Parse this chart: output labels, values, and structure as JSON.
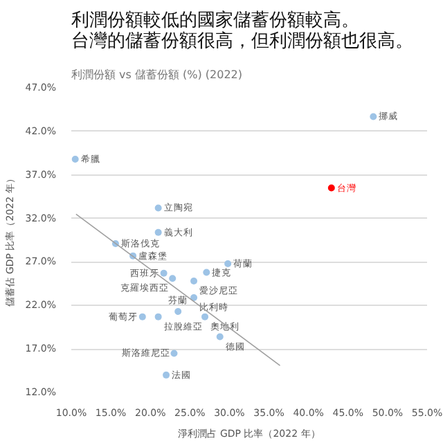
{
  "chart_data": {
    "type": "scatter",
    "title": "利潤份額較低的國家儲蓄份額較高。台灣的儲蓄份額很高，但利潤份額也很高。",
    "subtitle": "利潤份額 vs 儲蓄份額 (%) (2022)",
    "xlabel": "淨利潤占 GDP 比率（2022 年）",
    "ylabel": "儲蓄佔 GDP 比率（2022 年）",
    "xlim": [
      10,
      55
    ],
    "xticks": [
      {
        "value": 10,
        "label": "10.0%"
      },
      {
        "value": 15,
        "label": "15.0%"
      },
      {
        "value": 20,
        "label": "20.0%"
      },
      {
        "value": 25,
        "label": "25.0%"
      },
      {
        "value": 30,
        "label": "30.0%"
      },
      {
        "value": 35,
        "label": "35.0%"
      },
      {
        "value": 40,
        "label": "40.0%"
      },
      {
        "value": 45,
        "label": "45.0%"
      },
      {
        "value": 50,
        "label": "50.0%"
      },
      {
        "value": 55,
        "label": "55.0%"
      }
    ],
    "ylim": [
      12,
      47
    ],
    "yticks": [
      {
        "value": 12,
        "label": "12.0%"
      },
      {
        "value": 17,
        "label": "17.0%"
      },
      {
        "value": 22,
        "label": "22.0%"
      },
      {
        "value": 27,
        "label": "27.0%"
      },
      {
        "value": 32,
        "label": "32.0%"
      },
      {
        "value": 37,
        "label": "37.0%"
      },
      {
        "value": 42,
        "label": "42.0%"
      },
      {
        "value": 47,
        "label": "47.0%"
      }
    ],
    "grid": "y",
    "series": [
      {
        "marker": "circle",
        "color": "#9dc3e6",
        "x": [
          48.2,
          10.5,
          42.9,
          21.0,
          21.0,
          15.6,
          17.8,
          29.8,
          27.1,
          21.7,
          22.8,
          25.5,
          25.5,
          23.5,
          26.9,
          28.8,
          19.0,
          21.0,
          23.0,
          22.0
        ],
        "values": [
          43.7,
          38.8,
          35.5,
          33.2,
          30.4,
          29.1,
          27.7,
          26.8,
          25.8,
          25.7,
          25.1,
          24.8,
          22.9,
          21.3,
          20.7,
          18.4,
          20.7,
          20.7,
          16.5,
          14.0
        ],
        "colors": [
          "#9dc3e6",
          "#9dc3e6",
          "#ff0000",
          "#9dc3e6",
          "#9dc3e6",
          "#9dc3e6",
          "#9dc3e6",
          "#9dc3e6",
          "#9dc3e6",
          "#9dc3e6",
          "#9dc3e6",
          "#9dc3e6",
          "#9dc3e6",
          "#9dc3e6",
          "#9dc3e6",
          "#9dc3e6",
          "#9dc3e6",
          "#9dc3e6",
          "#9dc3e6",
          "#9dc3e6"
        ],
        "value_labels": [
          "挪威",
          "希臘",
          "台灣",
          "立陶宛",
          "義大利",
          "斯洛伐克",
          "盧森堡",
          "荷蘭",
          "捷克",
          "西班牙",
          "克羅埃西亞",
          "愛沙尼亞",
          "比利時",
          "芬蘭",
          "奧地利",
          "德國",
          "葡萄牙",
          "拉脫維亞",
          "斯洛維尼亞",
          "法國"
        ]
      },
      {
        "type": "line",
        "color": "#a0a0a0",
        "x": [
          10.6,
          36.4
        ],
        "values": [
          32.5,
          15.1
        ]
      }
    ]
  }
}
